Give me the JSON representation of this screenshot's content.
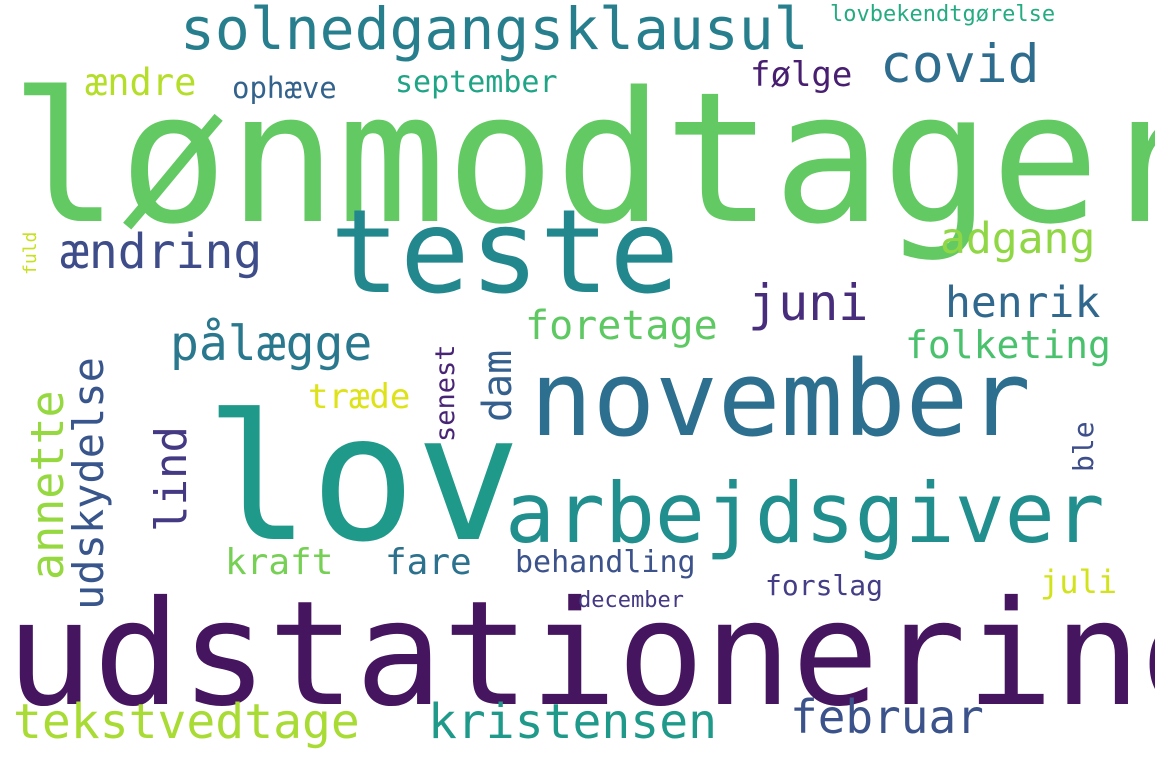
{
  "title": "",
  "words": [
    {
      "text": "lønmodtager",
      "color": "#63c963"
    },
    {
      "text": "udstationering",
      "color": "#46155f"
    },
    {
      "text": "lov",
      "color": "#1f9a8a"
    },
    {
      "text": "november",
      "color": "#2d6f8e"
    },
    {
      "text": "teste",
      "color": "#23888e"
    },
    {
      "text": "arbejdsgiver",
      "color": "#218f8d"
    },
    {
      "text": "solnedgangsklausul",
      "color": "#277f8e"
    },
    {
      "text": "kristensen",
      "color": "#1f9a8a"
    },
    {
      "text": "tekstvedtage",
      "color": "#a8db34"
    },
    {
      "text": "februar",
      "color": "#3b528b"
    },
    {
      "text": "covid",
      "color": "#2e6d8e"
    },
    {
      "text": "pålægge",
      "color": "#2a788e"
    },
    {
      "text": "ændring",
      "color": "#3e4c8a"
    },
    {
      "text": "adgang",
      "color": "#8fd744"
    },
    {
      "text": "juni",
      "color": "#472d7b"
    },
    {
      "text": "henrik",
      "color": "#31688e"
    },
    {
      "text": "foretage",
      "color": "#5ec962"
    },
    {
      "text": "folketing",
      "color": "#4ac16d"
    },
    {
      "text": "udskydelse",
      "color": "#39568c"
    },
    {
      "text": "annette",
      "color": "#95d840"
    },
    {
      "text": "lind",
      "color": "#443983"
    },
    {
      "text": "dam",
      "color": "#35608d"
    },
    {
      "text": "kraft",
      "color": "#75d054"
    },
    {
      "text": "fare",
      "color": "#2c728e"
    },
    {
      "text": "behandling",
      "color": "#3b528b"
    },
    {
      "text": "ændre",
      "color": "#b5de2b"
    },
    {
      "text": "ophæve",
      "color": "#33638d"
    },
    {
      "text": "september",
      "color": "#20a486"
    },
    {
      "text": "følge",
      "color": "#481f70"
    },
    {
      "text": "lovbekendtgørelse",
      "color": "#25ab82"
    },
    {
      "text": "træde",
      "color": "#dde318"
    },
    {
      "text": "senest",
      "color": "#482475"
    },
    {
      "text": "ble",
      "color": "#3d4e8a"
    },
    {
      "text": "juli",
      "color": "#d2e21b"
    },
    {
      "text": "forslag",
      "color": "#433e85"
    },
    {
      "text": "december",
      "color": "#443983"
    },
    {
      "text": "fuld",
      "color": "#c8e020"
    }
  ]
}
